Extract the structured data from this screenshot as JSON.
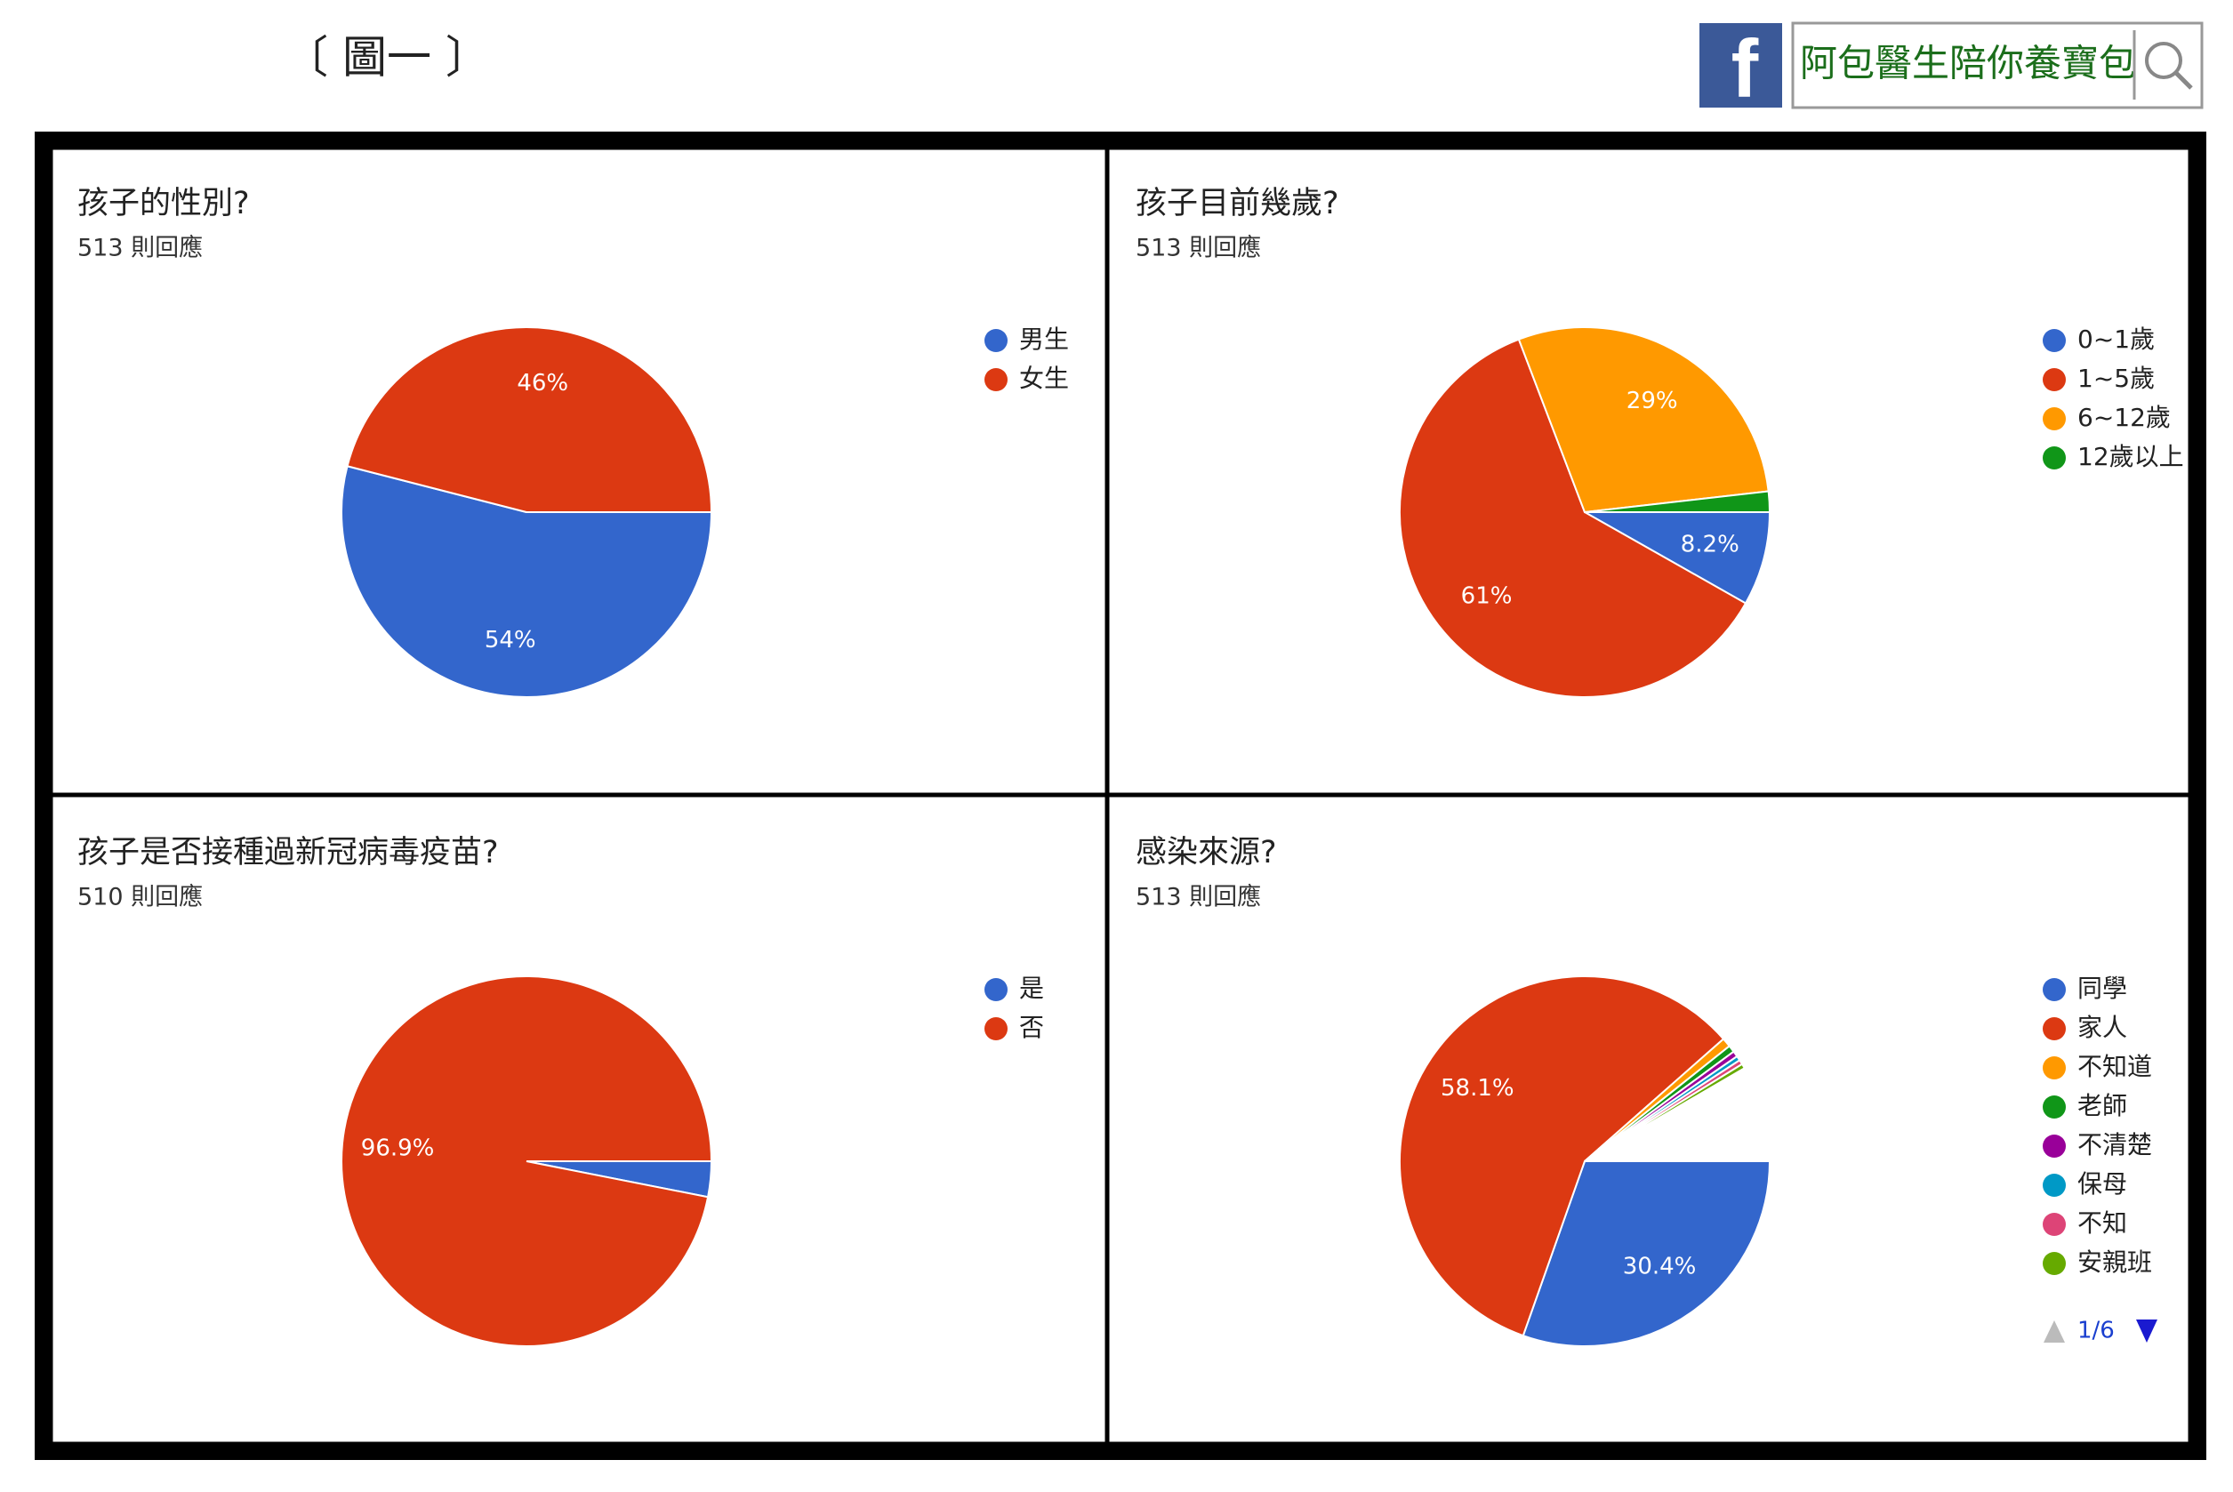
{
  "header": {
    "figure_label": "〔 圖一 〕",
    "brand": "阿包醫生陪你養寶包"
  },
  "chart_data": [
    {
      "type": "pie",
      "title": "孩子的性別?",
      "subtitle": "513 則回應",
      "categories": [
        "男生",
        "女生"
      ],
      "values": [
        54,
        46
      ],
      "value_labels": [
        "54%",
        "46%"
      ],
      "colors": [
        "#3366cc",
        "#dc3912"
      ]
    },
    {
      "type": "pie",
      "title": "孩子目前幾歲?",
      "subtitle": "513 則回應",
      "categories": [
        "0~1歲",
        "1~5歲",
        "6~12歲",
        "12歲以上"
      ],
      "values": [
        8.2,
        61,
        29,
        1.8
      ],
      "value_labels": [
        "8.2%",
        "61%",
        "29%",
        null
      ],
      "colors": [
        "#3366cc",
        "#dc3912",
        "#ff9900",
        "#109618"
      ]
    },
    {
      "type": "pie",
      "title": "孩子是否接種過新冠病毒疫苗?",
      "subtitle": "510 則回應",
      "categories": [
        "是",
        "否"
      ],
      "values": [
        3.1,
        96.9
      ],
      "value_labels": [
        null,
        "96.9%"
      ],
      "colors": [
        "#3366cc",
        "#dc3912"
      ]
    },
    {
      "type": "pie",
      "title": "感染來源?",
      "subtitle": "513 則回應",
      "categories": [
        "同學",
        "家人",
        "不知道",
        "老師",
        "不清楚",
        "保母",
        "不知",
        "安親班"
      ],
      "values": [
        30.4,
        58.1,
        0.8,
        0.6,
        0.5,
        0.4,
        0.4,
        0.4
      ],
      "value_labels": [
        "30.4%",
        "58.1%",
        null,
        null,
        null,
        null,
        null,
        null
      ],
      "colors": [
        "#3366cc",
        "#dc3912",
        "#ff9900",
        "#109618",
        "#990099",
        "#0099c6",
        "#dd4477",
        "#66aa00"
      ],
      "legend_page": "1/6"
    }
  ]
}
